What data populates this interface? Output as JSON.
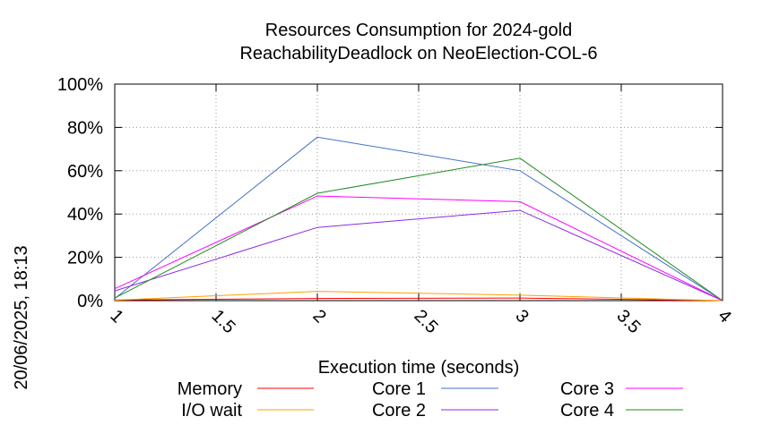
{
  "chart_data": {
    "type": "line",
    "title_line1": "Resources Consumption for 2024-gold",
    "title_line2": "ReachabilityDeadlock on NeoElection-COL-6",
    "xlabel": "Execution time (seconds)",
    "ylabel": "",
    "side_label": "20/06/2025, 18:13",
    "xlim": [
      1,
      4
    ],
    "ylim": [
      0,
      100
    ],
    "x_ticks": [
      "1",
      "1.5",
      "2",
      "2.5",
      "3",
      "3.5",
      "4"
    ],
    "y_ticks": [
      "0%",
      "20%",
      "40%",
      "60%",
      "80%",
      "100%"
    ],
    "grid": true,
    "legend_position": "bottom",
    "series": [
      {
        "name": "Memory",
        "color": "#ff0000",
        "x": [
          1,
          2,
          3,
          4
        ],
        "y": [
          0.3,
          1.0,
          1.2,
          0
        ]
      },
      {
        "name": "I/O wait",
        "color": "#ffa000",
        "x": [
          1,
          2,
          3,
          4
        ],
        "y": [
          0.2,
          4.3,
          2.5,
          0
        ]
      },
      {
        "name": "Core 1",
        "color": "#4472c4",
        "x": [
          1,
          2,
          3,
          4
        ],
        "y": [
          1,
          75.5,
          60,
          0
        ]
      },
      {
        "name": "Core 2",
        "color": "#8a2be2",
        "x": [
          1,
          2,
          3,
          4
        ],
        "y": [
          4.5,
          33.8,
          41.7,
          0
        ]
      },
      {
        "name": "Core 3",
        "color": "#ff00ff",
        "x": [
          1,
          2,
          3,
          4
        ],
        "y": [
          5.5,
          48.3,
          45.7,
          0
        ]
      },
      {
        "name": "Core 4",
        "color": "#228b22",
        "x": [
          1,
          2,
          3,
          4
        ],
        "y": [
          1.2,
          49.6,
          65.8,
          0
        ]
      }
    ]
  }
}
